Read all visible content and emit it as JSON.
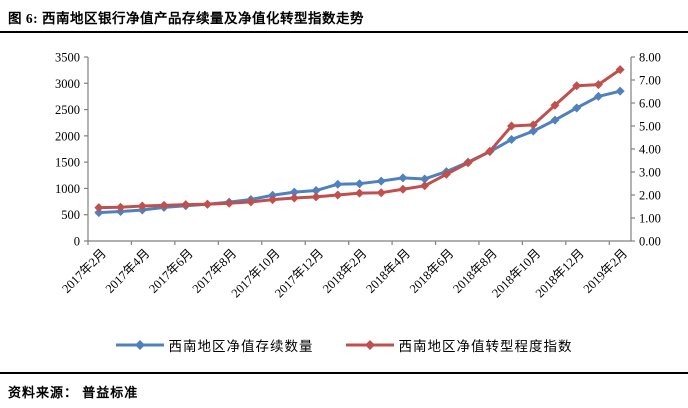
{
  "figure": {
    "title": "图 6: 西南地区银行净值产品存续量及净值化转型指数走势",
    "source_label": "资料来源： 普益标准"
  },
  "chart_data": {
    "type": "line",
    "title": "西南地区银行净值产品存续量及净值化转型指数走势",
    "categories": [
      "2017年2月",
      "2017年3月",
      "2017年4月",
      "2017年5月",
      "2017年6月",
      "2017年7月",
      "2017年8月",
      "2017年9月",
      "2017年10月",
      "2017年11月",
      "2017年12月",
      "2018年1月",
      "2018年2月",
      "2018年3月",
      "2018年4月",
      "2018年5月",
      "2018年6月",
      "2018年7月",
      "2018年8月",
      "2018年9月",
      "2018年10月",
      "2018年11月",
      "2018年12月",
      "2019年1月",
      "2019年2月"
    ],
    "x_label_interval": 2,
    "x_tick_labels": [
      "2017年2月",
      "2017年4月",
      "2017年6月",
      "2017年8月",
      "2017年10月",
      "2017年12月",
      "2018年2月",
      "2018年4月",
      "2018年6月",
      "2018年8月",
      "2018年10月",
      "2018年12月",
      "2019年2月"
    ],
    "series": [
      {
        "name": "西南地区净值存续数量",
        "axis": "left",
        "color": "#4F81BD",
        "marker": "diamond",
        "values": [
          540,
          560,
          590,
          640,
          670,
          700,
          740,
          790,
          870,
          930,
          960,
          1080,
          1090,
          1140,
          1200,
          1180,
          1320,
          1500,
          1700,
          1930,
          2090,
          2300,
          2530,
          2750,
          2850
        ]
      },
      {
        "name": "西南地区净值转型程度指数",
        "axis": "right",
        "color": "#C0504D",
        "marker": "diamond",
        "values": [
          1.45,
          1.47,
          1.52,
          1.55,
          1.58,
          1.6,
          1.64,
          1.7,
          1.8,
          1.87,
          1.92,
          2.0,
          2.08,
          2.1,
          2.25,
          2.4,
          2.9,
          3.4,
          3.9,
          5.0,
          5.05,
          5.9,
          6.75,
          6.8,
          7.45
        ]
      }
    ],
    "left_axis": {
      "min": 0,
      "max": 3500,
      "step": 500,
      "tick_labels": [
        "0",
        "500",
        "1000",
        "1500",
        "2000",
        "2500",
        "3000",
        "3500"
      ]
    },
    "right_axis": {
      "min": 0,
      "max": 8,
      "step": 1,
      "tick_labels": [
        "0.00",
        "1.00",
        "2.00",
        "3.00",
        "4.00",
        "5.00",
        "6.00",
        "7.00",
        "8.00"
      ]
    },
    "grid": false,
    "legend_position": "bottom",
    "axis_color": "#808080",
    "label_color": "#000000"
  }
}
